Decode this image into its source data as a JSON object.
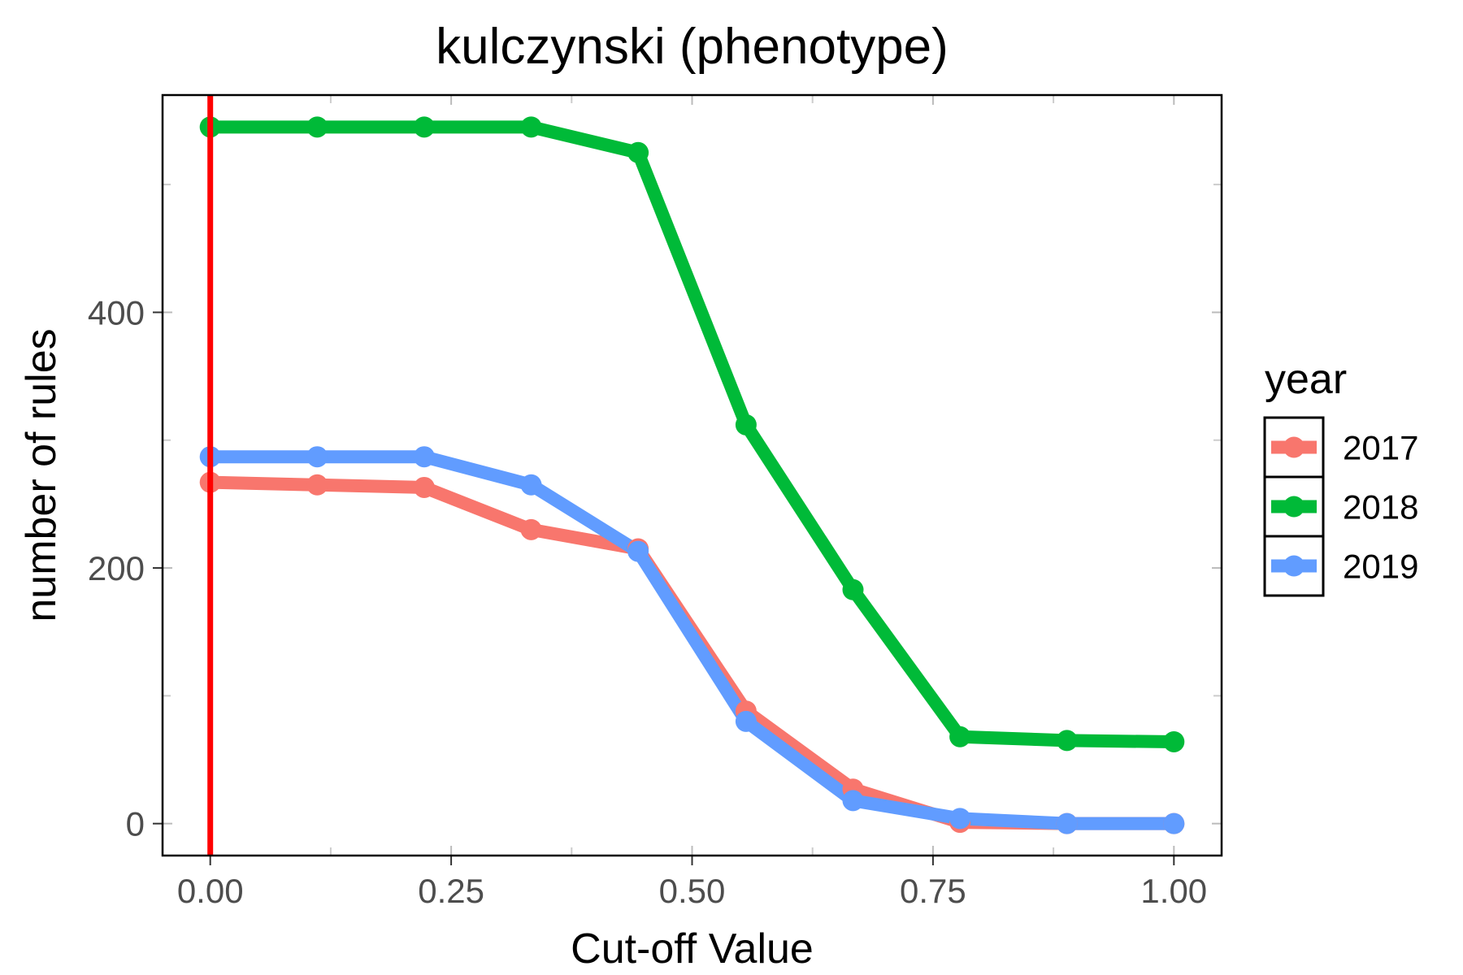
{
  "chart_data": {
    "type": "line",
    "title": "kulczynski (phenotype)",
    "xlabel": "Cut-off Value",
    "ylabel": "number of rules",
    "xlim": [
      -0.0495,
      1.0495
    ],
    "ylim": [
      -25,
      570
    ],
    "x_ticks": [
      0.0,
      0.25,
      0.5,
      0.75,
      1.0
    ],
    "x_tick_labels": [
      "0.00",
      "0.25",
      "0.50",
      "0.75",
      "1.00"
    ],
    "y_ticks": [
      0,
      200,
      400
    ],
    "y_tick_labels": [
      "0",
      "200",
      "400"
    ],
    "grid": false,
    "legend": {
      "title": "year",
      "position": "right"
    },
    "reference_line": {
      "x": 0.0,
      "color": "#ff0000"
    },
    "x": [
      0.0,
      0.111,
      0.222,
      0.333,
      0.444,
      0.556,
      0.667,
      0.778,
      0.889,
      1.0
    ],
    "series": [
      {
        "name": "2017",
        "color": "#F8766D",
        "values": [
          267,
          265,
          263,
          230,
          215,
          88,
          27,
          1,
          0,
          0
        ]
      },
      {
        "name": "2018",
        "color": "#00BA38",
        "values": [
          545,
          545,
          545,
          545,
          525,
          312,
          183,
          68,
          65,
          64
        ]
      },
      {
        "name": "2019",
        "color": "#619CFF",
        "values": [
          287,
          287,
          287,
          265,
          213,
          80,
          18,
          4,
          0,
          0
        ]
      }
    ]
  }
}
